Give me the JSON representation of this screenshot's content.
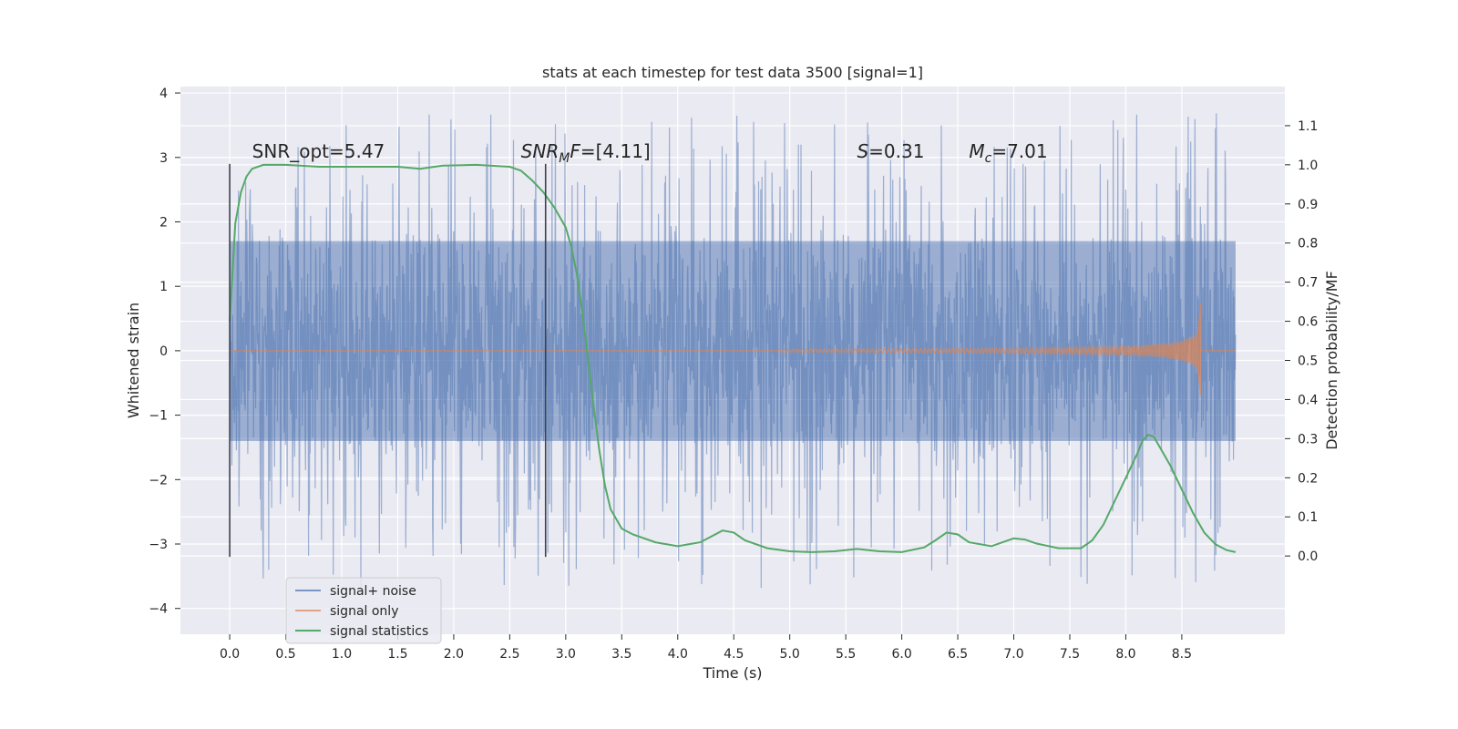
{
  "chart_data": {
    "type": "line",
    "title": "stats at each timestep for test data 3500 [signal=1]",
    "xlabel": "Time (s)",
    "ylabel": "Whitened strain",
    "y2label": "Detection probability/MF",
    "xlim": [
      -0.44,
      9.42
    ],
    "ylim": [
      -4.4,
      4.1
    ],
    "y2lim": [
      -0.2,
      1.2
    ],
    "x_ticks": [
      0.0,
      0.5,
      1.0,
      1.5,
      2.0,
      2.5,
      3.0,
      3.5,
      4.0,
      4.5,
      5.0,
      5.5,
      6.0,
      6.5,
      7.0,
      7.5,
      8.0,
      8.5
    ],
    "x_tick_labels": [
      "0.0",
      "0.5",
      "1.0",
      "1.5",
      "2.0",
      "2.5",
      "3.0",
      "3.5",
      "4.0",
      "4.5",
      "5.0",
      "5.5",
      "6.0",
      "6.5",
      "7.0",
      "7.5",
      "8.0",
      "8.5"
    ],
    "y_ticks": [
      -4,
      -3,
      -2,
      -1,
      0,
      1,
      2,
      3,
      4
    ],
    "y_tick_labels": [
      "−4",
      "−3",
      "−2",
      "−1",
      "0",
      "1",
      "2",
      "3",
      "4"
    ],
    "y2_ticks": [
      0.0,
      0.1,
      0.2,
      0.3,
      0.4,
      0.5,
      0.6,
      0.7,
      0.8,
      0.9,
      1.0,
      1.1
    ],
    "y2_tick_labels": [
      "0.0",
      "0.1",
      "0.2",
      "0.3",
      "0.4",
      "0.5",
      "0.6",
      "0.7",
      "0.8",
      "0.9",
      "1.0",
      "1.1"
    ],
    "grid": true,
    "legend_position": "lower-left",
    "annotations": [
      {
        "text": "SNR_opt=5.47",
        "x": 0.2,
        "y": 3.0
      },
      {
        "text": "SNR_MF=[4.11]",
        "x": 2.6,
        "y": 3.0
      },
      {
        "text": "S=0.31",
        "x": 5.6,
        "y": 3.0
      },
      {
        "text": "M_c=7.01",
        "x": 6.6,
        "y": 3.0
      }
    ],
    "vertical_lines": [
      {
        "x": 0.0,
        "ymin": -3.2,
        "ymax": 2.9
      },
      {
        "x": 2.82,
        "ymin": -3.2,
        "ymax": 2.9
      }
    ],
    "noise_envelope": {
      "x_range": [
        0.0,
        8.98
      ],
      "typical_band": [
        -1.4,
        1.7
      ],
      "spike_range": [
        -3.8,
        3.7
      ]
    },
    "series": [
      {
        "name": "signal+ noise",
        "color": "#4c72b0",
        "axis": "left",
        "x_range": [
          0.0,
          8.98
        ],
        "y_range": [
          -3.8,
          3.7
        ]
      },
      {
        "name": "signal only",
        "color": "#dd8452",
        "axis": "left",
        "chirp_start": 4.9,
        "chirp_end": 8.67,
        "peak_amplitude": 0.5,
        "x_range": [
          0.0,
          8.98
        ]
      },
      {
        "name": "signal statistics",
        "color": "#55a868",
        "axis": "right",
        "x": [
          0.0,
          0.05,
          0.1,
          0.15,
          0.2,
          0.3,
          0.5,
          0.8,
          1.0,
          1.3,
          1.5,
          1.7,
          1.9,
          2.2,
          2.5,
          2.6,
          2.7,
          2.8,
          2.9,
          3.0,
          3.05,
          3.1,
          3.15,
          3.2,
          3.25,
          3.3,
          3.35,
          3.4,
          3.5,
          3.6,
          3.8,
          4.0,
          4.2,
          4.3,
          4.4,
          4.5,
          4.6,
          4.8,
          5.0,
          5.2,
          5.4,
          5.6,
          5.8,
          6.0,
          6.2,
          6.3,
          6.4,
          6.5,
          6.6,
          6.8,
          7.0,
          7.1,
          7.2,
          7.4,
          7.6,
          7.7,
          7.8,
          7.9,
          8.0,
          8.1,
          8.15,
          8.2,
          8.25,
          8.3,
          8.4,
          8.5,
          8.6,
          8.7,
          8.8,
          8.9,
          8.98
        ],
        "values": [
          0.6,
          0.85,
          0.93,
          0.97,
          0.99,
          1.0,
          1.0,
          0.995,
          0.995,
          0.995,
          0.995,
          0.99,
          0.998,
          1.0,
          0.995,
          0.985,
          0.96,
          0.93,
          0.89,
          0.84,
          0.79,
          0.72,
          0.62,
          0.5,
          0.38,
          0.27,
          0.18,
          0.12,
          0.07,
          0.055,
          0.035,
          0.025,
          0.035,
          0.05,
          0.065,
          0.06,
          0.04,
          0.02,
          0.012,
          0.01,
          0.012,
          0.018,
          0.012,
          0.01,
          0.022,
          0.04,
          0.06,
          0.055,
          0.035,
          0.025,
          0.045,
          0.042,
          0.032,
          0.02,
          0.02,
          0.04,
          0.08,
          0.14,
          0.2,
          0.26,
          0.295,
          0.31,
          0.305,
          0.28,
          0.23,
          0.17,
          0.11,
          0.06,
          0.03,
          0.015,
          0.01
        ]
      }
    ]
  }
}
